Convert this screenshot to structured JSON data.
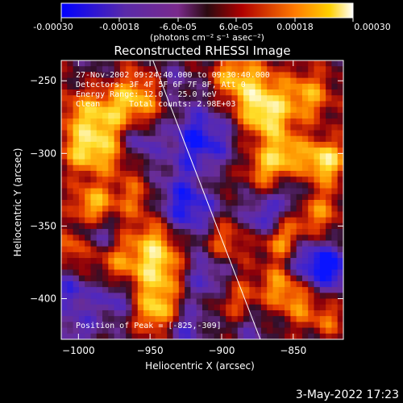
{
  "colorbar": {
    "ticks": [
      "-0.00030",
      "-0.00018",
      "-6.0e-05",
      "6.0e-05",
      "0.00018",
      "0.00030"
    ],
    "unit_label": "(photons cm⁻² s⁻¹ asec⁻²)"
  },
  "chart_data": {
    "type": "heatmap",
    "title": "Reconstructed RHESSI Image",
    "xlabel": "Heliocentric X (arcsec)",
    "ylabel": "Heliocentric Y (arcsec)",
    "xlim": [
      -1012,
      -815
    ],
    "ylim": [
      -428,
      -236
    ],
    "x_ticks": [
      -1000,
      -950,
      -900,
      -850
    ],
    "x_tick_labels": [
      "−1000",
      "−950",
      "−900",
      "−850"
    ],
    "y_ticks": [
      -250,
      -300,
      -350,
      -400
    ],
    "y_tick_labels": [
      "−250",
      "−300",
      "−350",
      "−400"
    ],
    "color_range": [
      -0.0003,
      0.0003
    ],
    "limb_line": [
      [
        -948,
        -236
      ],
      [
        -873,
        -428
      ]
    ],
    "annotations": {
      "time_range": "27-Nov-2002 09:24:40.000 to 09:30:40.000",
      "detectors": "Detectors: 3F 4F 5F 6F 7F 8F, Att 0",
      "energy": "Energy Range: 12.0 - 25.0 keV",
      "method": "Clean",
      "counts": "Total counts: 2.98E+03",
      "peak": "Position of Peak = [-825,-309]"
    }
  },
  "footer": {
    "date": "3-May-2022 17:23"
  }
}
